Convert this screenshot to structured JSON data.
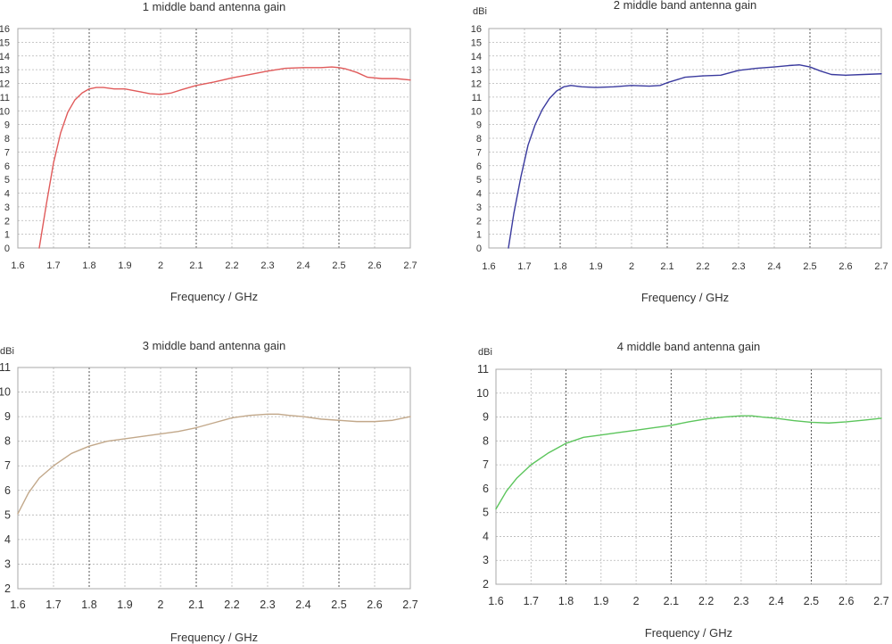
{
  "chart_data": [
    {
      "type": "line",
      "title": "1 middle band antenna gain",
      "xlabel": "Frequency / GHz",
      "ylabel": "",
      "unit_label": "",
      "xlim": [
        1.6,
        2.7
      ],
      "ylim": [
        0,
        16
      ],
      "xticks": [
        "1.6",
        "1.7",
        "1.8",
        "1.9",
        "2",
        "2.1",
        "2.2",
        "2.3",
        "2.4",
        "2.5",
        "2.6",
        "2.7"
      ],
      "yticks": [
        "0",
        "1",
        "2",
        "3",
        "4",
        "5",
        "6",
        "7",
        "8",
        "9",
        "10",
        "11",
        "12",
        "13",
        "14",
        "15",
        "16"
      ],
      "grid": true,
      "series": [
        {
          "color": "#e05a5a",
          "x": [
            1.66,
            1.68,
            1.7,
            1.72,
            1.74,
            1.76,
            1.78,
            1.8,
            1.82,
            1.84,
            1.87,
            1.9,
            1.94,
            1.97,
            2.0,
            2.03,
            2.06,
            2.1,
            2.15,
            2.2,
            2.25,
            2.3,
            2.35,
            2.4,
            2.45,
            2.48,
            2.5,
            2.52,
            2.55,
            2.58,
            2.62,
            2.66,
            2.7
          ],
          "y": [
            0,
            3.2,
            6.2,
            8.4,
            9.9,
            10.8,
            11.3,
            11.6,
            11.7,
            11.7,
            11.6,
            11.6,
            11.4,
            11.25,
            11.2,
            11.3,
            11.55,
            11.85,
            12.1,
            12.4,
            12.65,
            12.9,
            13.1,
            13.15,
            13.15,
            13.2,
            13.15,
            13.05,
            12.8,
            12.45,
            12.35,
            12.35,
            12.25
          ]
        }
      ]
    },
    {
      "type": "line",
      "title": "2 middle band antenna gain",
      "xlabel": "Frequency / GHz",
      "ylabel": "",
      "unit_label": "dBi",
      "xlim": [
        1.6,
        2.7
      ],
      "ylim": [
        0,
        16
      ],
      "xticks": [
        "1.6",
        "1.7",
        "1.8",
        "1.9",
        "2",
        "2.1",
        "2.2",
        "2.3",
        "2.4",
        "2.5",
        "2.6",
        "2.7"
      ],
      "yticks": [
        "0",
        "1",
        "2",
        "3",
        "4",
        "5",
        "6",
        "7",
        "8",
        "9",
        "10",
        "11",
        "12",
        "13",
        "14",
        "15",
        "16"
      ],
      "grid": true,
      "series": [
        {
          "color": "#3a3a9e",
          "x": [
            1.655,
            1.67,
            1.69,
            1.71,
            1.73,
            1.75,
            1.77,
            1.79,
            1.81,
            1.83,
            1.86,
            1.9,
            1.95,
            2.0,
            2.05,
            2.08,
            2.1,
            2.15,
            2.2,
            2.25,
            2.3,
            2.35,
            2.4,
            2.44,
            2.47,
            2.5,
            2.53,
            2.56,
            2.6,
            2.65,
            2.7
          ],
          "y": [
            0,
            2.5,
            5.2,
            7.5,
            9.0,
            10.1,
            10.9,
            11.45,
            11.75,
            11.85,
            11.75,
            11.7,
            11.75,
            11.85,
            11.8,
            11.85,
            12.05,
            12.45,
            12.55,
            12.6,
            12.95,
            13.1,
            13.2,
            13.3,
            13.35,
            13.2,
            12.9,
            12.65,
            12.6,
            12.65,
            12.7
          ]
        }
      ]
    },
    {
      "type": "line",
      "title": "3 middle band antenna gain",
      "xlabel": "Frequency / GHz",
      "ylabel": "",
      "unit_label": "dBi",
      "xlim": [
        1.6,
        2.7
      ],
      "ylim": [
        2,
        11
      ],
      "xticks": [
        "1.6",
        "1.7",
        "1.8",
        "1.9",
        "2",
        "2.1",
        "2.2",
        "2.3",
        "2.4",
        "2.5",
        "2.6",
        "2.7"
      ],
      "yticks": [
        "2",
        "3",
        "4",
        "5",
        "6",
        "7",
        "8",
        "9",
        "10",
        "11"
      ],
      "grid": true,
      "series": [
        {
          "color": "#c2a88a",
          "x": [
            1.6,
            1.63,
            1.66,
            1.7,
            1.75,
            1.8,
            1.85,
            1.9,
            1.95,
            2.0,
            2.05,
            2.1,
            2.15,
            2.2,
            2.25,
            2.3,
            2.33,
            2.36,
            2.4,
            2.45,
            2.5,
            2.55,
            2.6,
            2.65,
            2.7
          ],
          "y": [
            5.05,
            5.9,
            6.5,
            7.0,
            7.5,
            7.8,
            8.0,
            8.1,
            8.2,
            8.3,
            8.4,
            8.55,
            8.75,
            8.95,
            9.05,
            9.1,
            9.1,
            9.05,
            9.0,
            8.9,
            8.85,
            8.8,
            8.8,
            8.85,
            9.0
          ]
        }
      ]
    },
    {
      "type": "line",
      "title": "4 middle band antenna gain",
      "xlabel": "Frequency / GHz",
      "ylabel": "",
      "unit_label": "dBi",
      "xlim": [
        1.6,
        2.7
      ],
      "ylim": [
        2,
        11
      ],
      "xticks": [
        "1.6",
        "1.7",
        "1.8",
        "1.9",
        "2",
        "2.1",
        "2.2",
        "2.3",
        "2.4",
        "2.5",
        "2.6",
        "2.7"
      ],
      "yticks": [
        "2",
        "3",
        "4",
        "5",
        "6",
        "7",
        "8",
        "9",
        "10",
        "11"
      ],
      "grid": true,
      "series": [
        {
          "color": "#5cc55c",
          "x": [
            1.6,
            1.63,
            1.66,
            1.7,
            1.75,
            1.8,
            1.85,
            1.9,
            1.95,
            2.0,
            2.05,
            2.1,
            2.15,
            2.2,
            2.25,
            2.3,
            2.33,
            2.36,
            2.4,
            2.45,
            2.5,
            2.55,
            2.6,
            2.65,
            2.7
          ],
          "y": [
            5.15,
            5.9,
            6.45,
            7.0,
            7.5,
            7.9,
            8.15,
            8.25,
            8.35,
            8.45,
            8.55,
            8.65,
            8.8,
            8.92,
            9.0,
            9.05,
            9.05,
            9.0,
            8.95,
            8.85,
            8.78,
            8.75,
            8.8,
            8.87,
            8.95
          ]
        }
      ]
    }
  ]
}
